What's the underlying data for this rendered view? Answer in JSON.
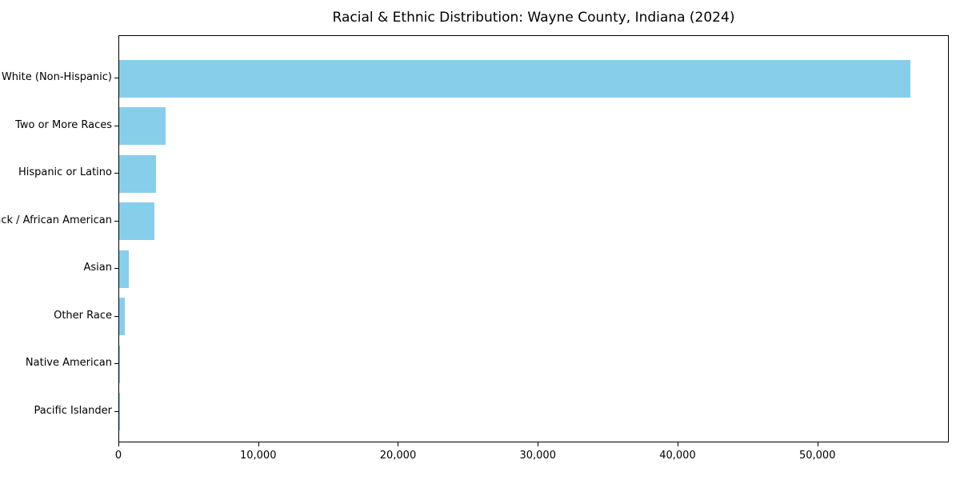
{
  "chart_data": {
    "type": "bar",
    "orientation": "horizontal",
    "title": "Racial & Ethnic Distribution: Wayne County, Indiana (2024)",
    "categories": [
      "White (Non-Hispanic)",
      "Two or More Races",
      "Hispanic or Latino",
      "Black / African American",
      "Asian",
      "Other Race",
      "Native American",
      "Pacific Islander"
    ],
    "values": [
      56600,
      3340,
      2610,
      2520,
      710,
      420,
      60,
      20
    ],
    "xlabel": "",
    "ylabel": "",
    "xlim": [
      0,
      59400
    ],
    "x_ticks": [
      0,
      10000,
      20000,
      30000,
      40000,
      50000
    ],
    "x_tick_labels": [
      "0",
      "10,000",
      "20,000",
      "30,000",
      "40,000",
      "50,000"
    ],
    "bar_color": "#87CEEB",
    "background_color": "#ffffff",
    "spine_color": "#000000",
    "text_color": "#000000",
    "grid": false,
    "legend": null
  }
}
